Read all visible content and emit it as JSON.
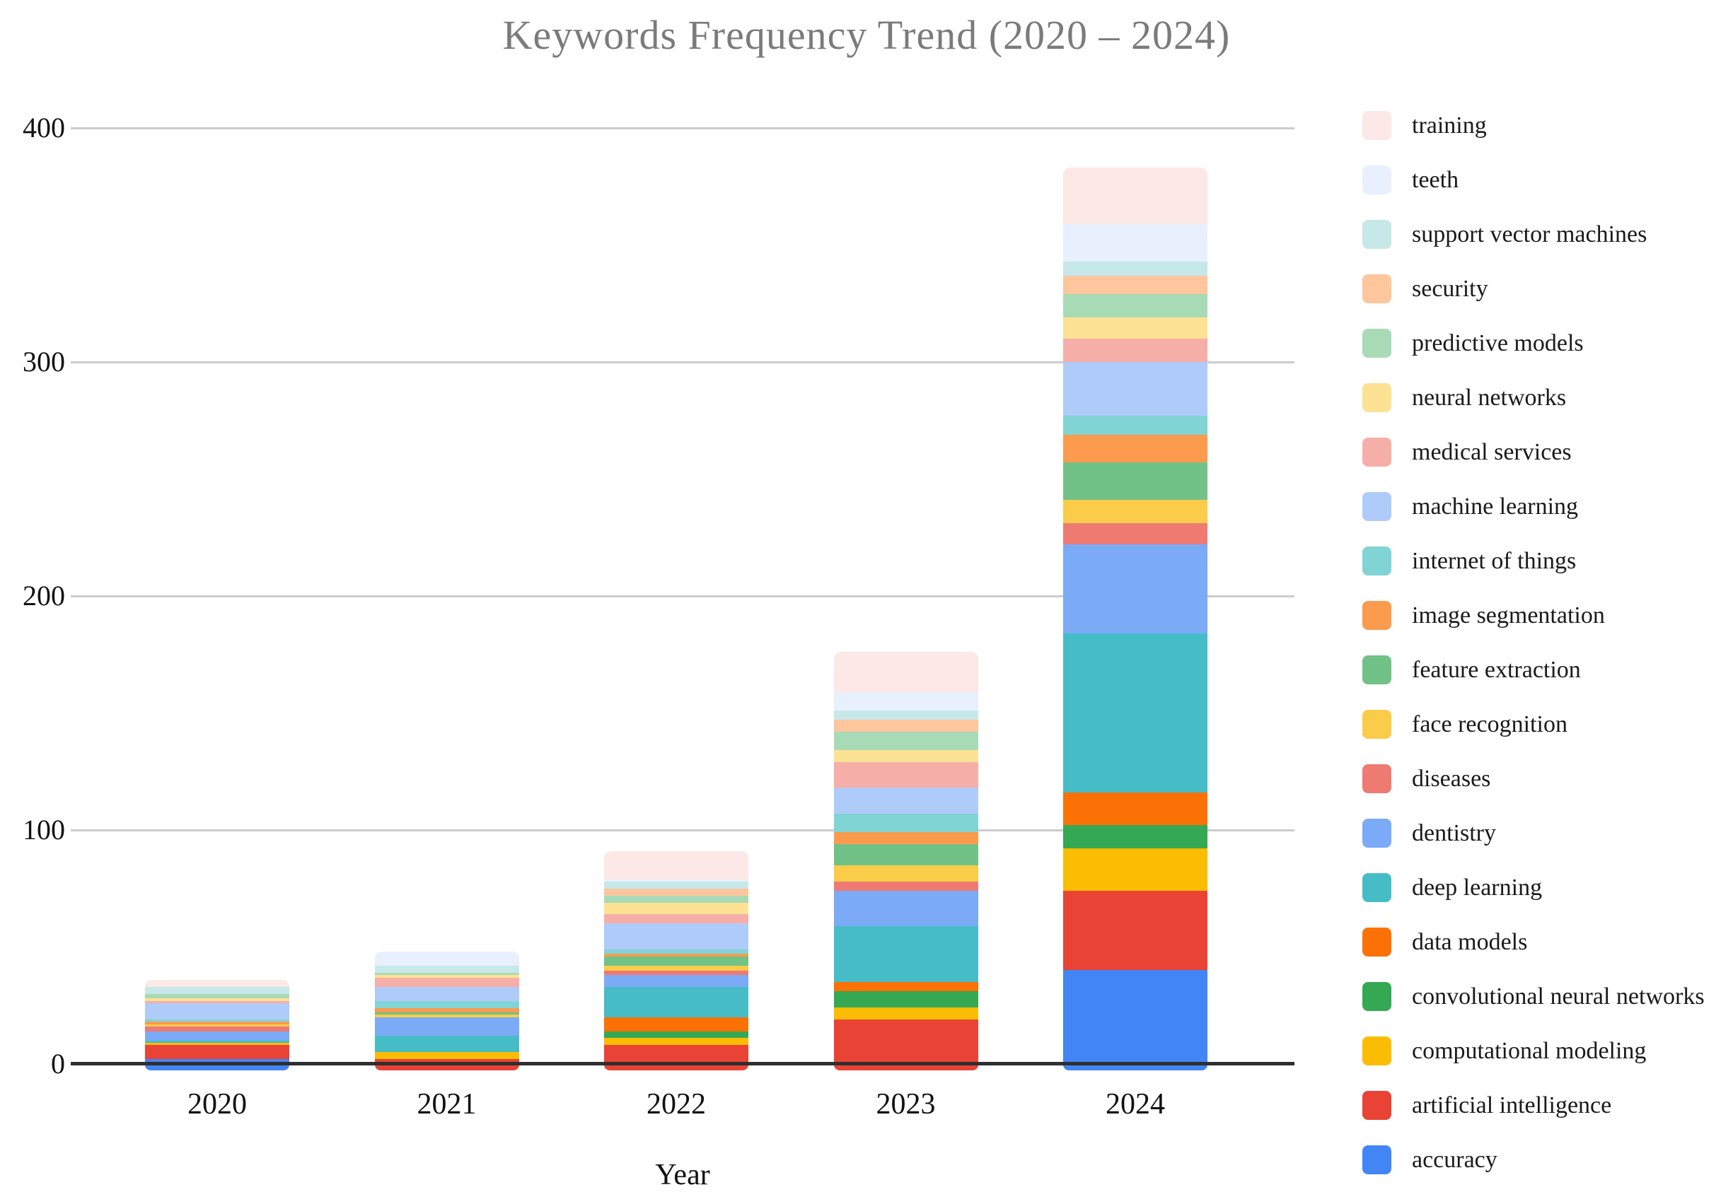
{
  "title": "Keywords Frequency Trend (2020 – 2024)",
  "colors": {
    "background": "#ffffff",
    "gridline": "#cccccc",
    "axis_line": "#2f2f2f",
    "title_text": "#7b7b7b",
    "tick_text": "#111111",
    "legend_text": "#1a1a1a"
  },
  "chart_data": {
    "type": "bar",
    "stacked": true,
    "title": "Keywords Frequency Trend (2020 – 2024)",
    "xlabel": "Year",
    "ylabel": "",
    "categories": [
      "2020",
      "2021",
      "2022",
      "2023",
      "2024"
    ],
    "ylim": [
      0,
      400
    ],
    "yticks": [
      0,
      100,
      200,
      300,
      400
    ],
    "grid": true,
    "legend_position": "right",
    "legend_note": "legend listed top-to-bottom matches stack top-to-bottom; bottom stack segment is accuracy",
    "series": [
      {
        "name": "training",
        "color": "#FCE8E6",
        "values": [
          3,
          0,
          12,
          17,
          24
        ]
      },
      {
        "name": "teeth",
        "color": "#E8F0FE",
        "values": [
          0,
          6,
          1,
          8,
          16
        ]
      },
      {
        "name": "support vector machines",
        "color": "#C6E8E8",
        "values": [
          3,
          3,
          3,
          4,
          6
        ]
      },
      {
        "name": "security",
        "color": "#FDC69C",
        "values": [
          0,
          0,
          3,
          5,
          8
        ]
      },
      {
        "name": "predictive models",
        "color": "#A8DAB5",
        "values": [
          2,
          1,
          3,
          8,
          10
        ]
      },
      {
        "name": "neural networks",
        "color": "#FDE293",
        "values": [
          1,
          1,
          5,
          5,
          9
        ]
      },
      {
        "name": "medical services",
        "color": "#F6AEA9",
        "values": [
          1,
          4,
          4,
          11,
          10
        ]
      },
      {
        "name": "machine learning",
        "color": "#AECBFA",
        "values": [
          7,
          6,
          11,
          11,
          23
        ]
      },
      {
        "name": "internet of things",
        "color": "#81D4D4",
        "values": [
          1,
          3,
          2,
          8,
          8
        ]
      },
      {
        "name": "image segmentation",
        "color": "#FA9B4E",
        "values": [
          1,
          2,
          1,
          5,
          12
        ]
      },
      {
        "name": "feature extraction",
        "color": "#71C287",
        "values": [
          0,
          1,
          4,
          9,
          16
        ]
      },
      {
        "name": "face recognition",
        "color": "#FBCB4A",
        "values": [
          1,
          1,
          2,
          7,
          10
        ]
      },
      {
        "name": "diseases",
        "color": "#EE7A72",
        "values": [
          2,
          0,
          2,
          4,
          9
        ]
      },
      {
        "name": "dentistry",
        "color": "#7BAAF7",
        "values": [
          4,
          8,
          5,
          15,
          38
        ]
      },
      {
        "name": "deep learning",
        "color": "#46BDC6",
        "values": [
          1,
          7,
          13,
          24,
          68
        ]
      },
      {
        "name": "data models",
        "color": "#FB7106",
        "values": [
          0,
          0,
          6,
          4,
          14
        ]
      },
      {
        "name": "convolutional neural networks",
        "color": "#34A853",
        "values": [
          0,
          0,
          3,
          7,
          10
        ]
      },
      {
        "name": "computational modeling",
        "color": "#FBBC04",
        "values": [
          1,
          3,
          3,
          5,
          18
        ]
      },
      {
        "name": "artificial intelligence",
        "color": "#E94335",
        "values": [
          6,
          2,
          8,
          19,
          34
        ]
      },
      {
        "name": "accuracy",
        "color": "#4285F4",
        "values": [
          2,
          0,
          0,
          0,
          40
        ]
      }
    ],
    "totals_by_year": [
      36,
      48,
      91,
      176,
      383
    ]
  }
}
